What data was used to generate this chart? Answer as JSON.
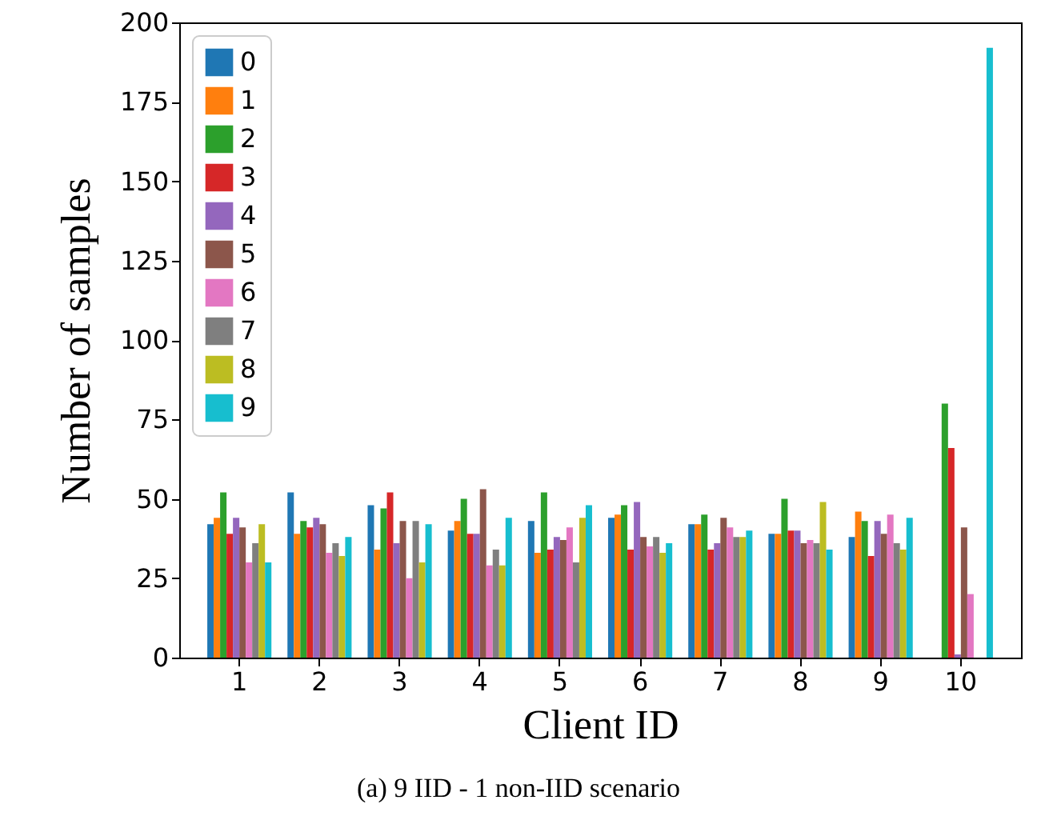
{
  "chart_data": {
    "type": "bar",
    "xlabel": "Client ID",
    "ylabel": "Number of samples",
    "categories": [
      "1",
      "2",
      "3",
      "4",
      "5",
      "6",
      "7",
      "8",
      "9",
      "10"
    ],
    "series": [
      {
        "name": "0",
        "color": "#1f77b4",
        "values": [
          42,
          52,
          48,
          40,
          43,
          44,
          42,
          39,
          38,
          0
        ]
      },
      {
        "name": "1",
        "color": "#ff7f0e",
        "values": [
          44,
          39,
          34,
          43,
          33,
          45,
          42,
          39,
          46,
          0
        ]
      },
      {
        "name": "2",
        "color": "#2ca02c",
        "values": [
          52,
          43,
          47,
          50,
          52,
          48,
          45,
          50,
          43,
          80
        ]
      },
      {
        "name": "3",
        "color": "#d62728",
        "values": [
          39,
          41,
          52,
          39,
          34,
          34,
          34,
          40,
          32,
          66
        ]
      },
      {
        "name": "4",
        "color": "#9467bd",
        "values": [
          44,
          44,
          36,
          39,
          38,
          49,
          36,
          40,
          43,
          1
        ]
      },
      {
        "name": "5",
        "color": "#8c564b",
        "values": [
          41,
          42,
          43,
          53,
          37,
          38,
          44,
          36,
          39,
          41
        ]
      },
      {
        "name": "6",
        "color": "#e377c2",
        "values": [
          30,
          33,
          25,
          29,
          41,
          35,
          41,
          37,
          45,
          20
        ]
      },
      {
        "name": "7",
        "color": "#7f7f7f",
        "values": [
          36,
          36,
          43,
          34,
          30,
          38,
          38,
          36,
          36,
          0
        ]
      },
      {
        "name": "8",
        "color": "#bcbd22",
        "values": [
          42,
          32,
          30,
          29,
          44,
          33,
          38,
          49,
          34,
          0
        ]
      },
      {
        "name": "9",
        "color": "#17becf",
        "values": [
          30,
          38,
          42,
          44,
          48,
          36,
          40,
          34,
          44,
          192
        ]
      }
    ],
    "ylim": [
      0,
      200
    ],
    "yticks": [
      0,
      25,
      50,
      75,
      100,
      125,
      150,
      175,
      200
    ],
    "grid": false,
    "legend": "top left",
    "annotations": [
      "(a) 9 IID - 1 non-IID scenario"
    ]
  }
}
